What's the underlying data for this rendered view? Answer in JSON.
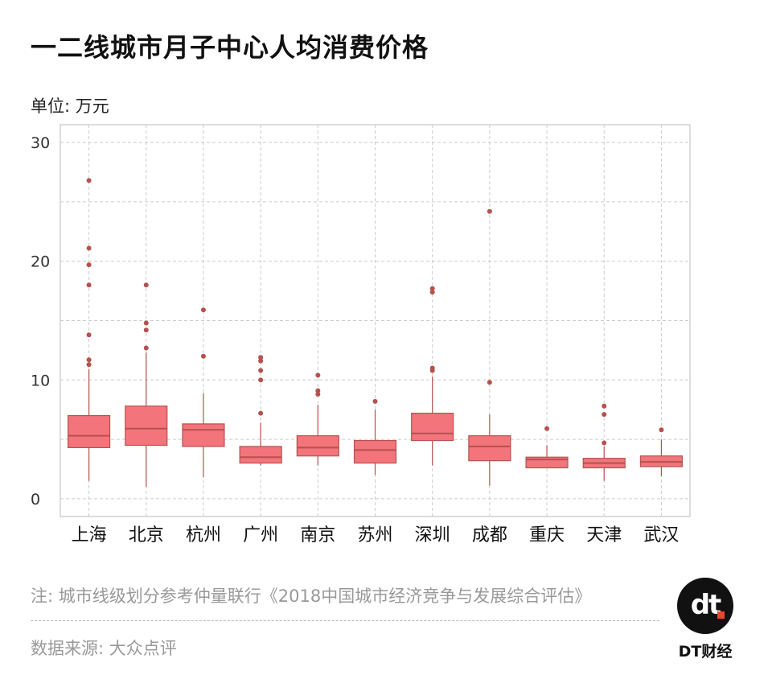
{
  "header": {
    "title": "一二线城市月子中心人均消费价格",
    "unit": "单位: 万元"
  },
  "footer": {
    "note": "注: 城市线级划分参考仲量联行《2018中国城市经济竞争与发展综合评估》",
    "source": "数据来源: 大众点评",
    "brand": "DT财经",
    "logo_text": "dt"
  },
  "colors": {
    "box_fill": "#f4747c",
    "box_stroke": "#b5524d",
    "grid": "#cccccc"
  },
  "chart_data": {
    "type": "box",
    "ylim": [
      -1.5,
      31.5
    ],
    "yticks": [
      0,
      10,
      20,
      30
    ],
    "grid": true,
    "categories": [
      "上海",
      "北京",
      "杭州",
      "广州",
      "南京",
      "苏州",
      "深圳",
      "成都",
      "重庆",
      "天津",
      "武汉"
    ],
    "boxes": [
      {
        "whislo": 1.5,
        "q1": 4.3,
        "med": 5.3,
        "q3": 7.0,
        "whishi": 10.9,
        "fliers": [
          11.3,
          11.7,
          13.8,
          18.0,
          19.7,
          21.1,
          26.8
        ]
      },
      {
        "whislo": 1.0,
        "q1": 4.5,
        "med": 5.9,
        "q3": 7.8,
        "whishi": 12.3,
        "fliers": [
          12.7,
          14.2,
          14.8,
          18.0
        ]
      },
      {
        "whislo": 1.8,
        "q1": 4.4,
        "med": 5.8,
        "q3": 6.3,
        "whishi": 8.9,
        "fliers": [
          12.0,
          15.9
        ]
      },
      {
        "whislo": 2.8,
        "q1": 3.0,
        "med": 3.5,
        "q3": 4.4,
        "whishi": 6.4,
        "fliers": [
          7.2,
          10.0,
          10.8,
          11.6,
          11.9
        ]
      },
      {
        "whislo": 2.8,
        "q1": 3.6,
        "med": 4.3,
        "q3": 5.3,
        "whishi": 7.9,
        "fliers": [
          8.8,
          9.1,
          10.4
        ]
      },
      {
        "whislo": 2.0,
        "q1": 3.0,
        "med": 4.1,
        "q3": 4.9,
        "whishi": 7.5,
        "fliers": [
          8.2
        ]
      },
      {
        "whislo": 2.8,
        "q1": 4.9,
        "med": 5.5,
        "q3": 7.2,
        "whishi": 10.3,
        "fliers": [
          10.8,
          11.0,
          17.4,
          17.7
        ]
      },
      {
        "whislo": 1.1,
        "q1": 3.2,
        "med": 4.4,
        "q3": 5.3,
        "whishi": 7.1,
        "fliers": [
          9.8,
          24.2
        ]
      },
      {
        "whislo": 2.6,
        "q1": 2.6,
        "med": 3.3,
        "q3": 3.5,
        "whishi": 4.5,
        "fliers": [
          5.9
        ]
      },
      {
        "whislo": 1.5,
        "q1": 2.6,
        "med": 3.0,
        "q3": 3.4,
        "whishi": 4.4,
        "fliers": [
          4.7,
          7.1,
          7.8
        ]
      },
      {
        "whislo": 1.9,
        "q1": 2.7,
        "med": 3.1,
        "q3": 3.6,
        "whishi": 5.0,
        "fliers": [
          5.8
        ]
      }
    ]
  }
}
